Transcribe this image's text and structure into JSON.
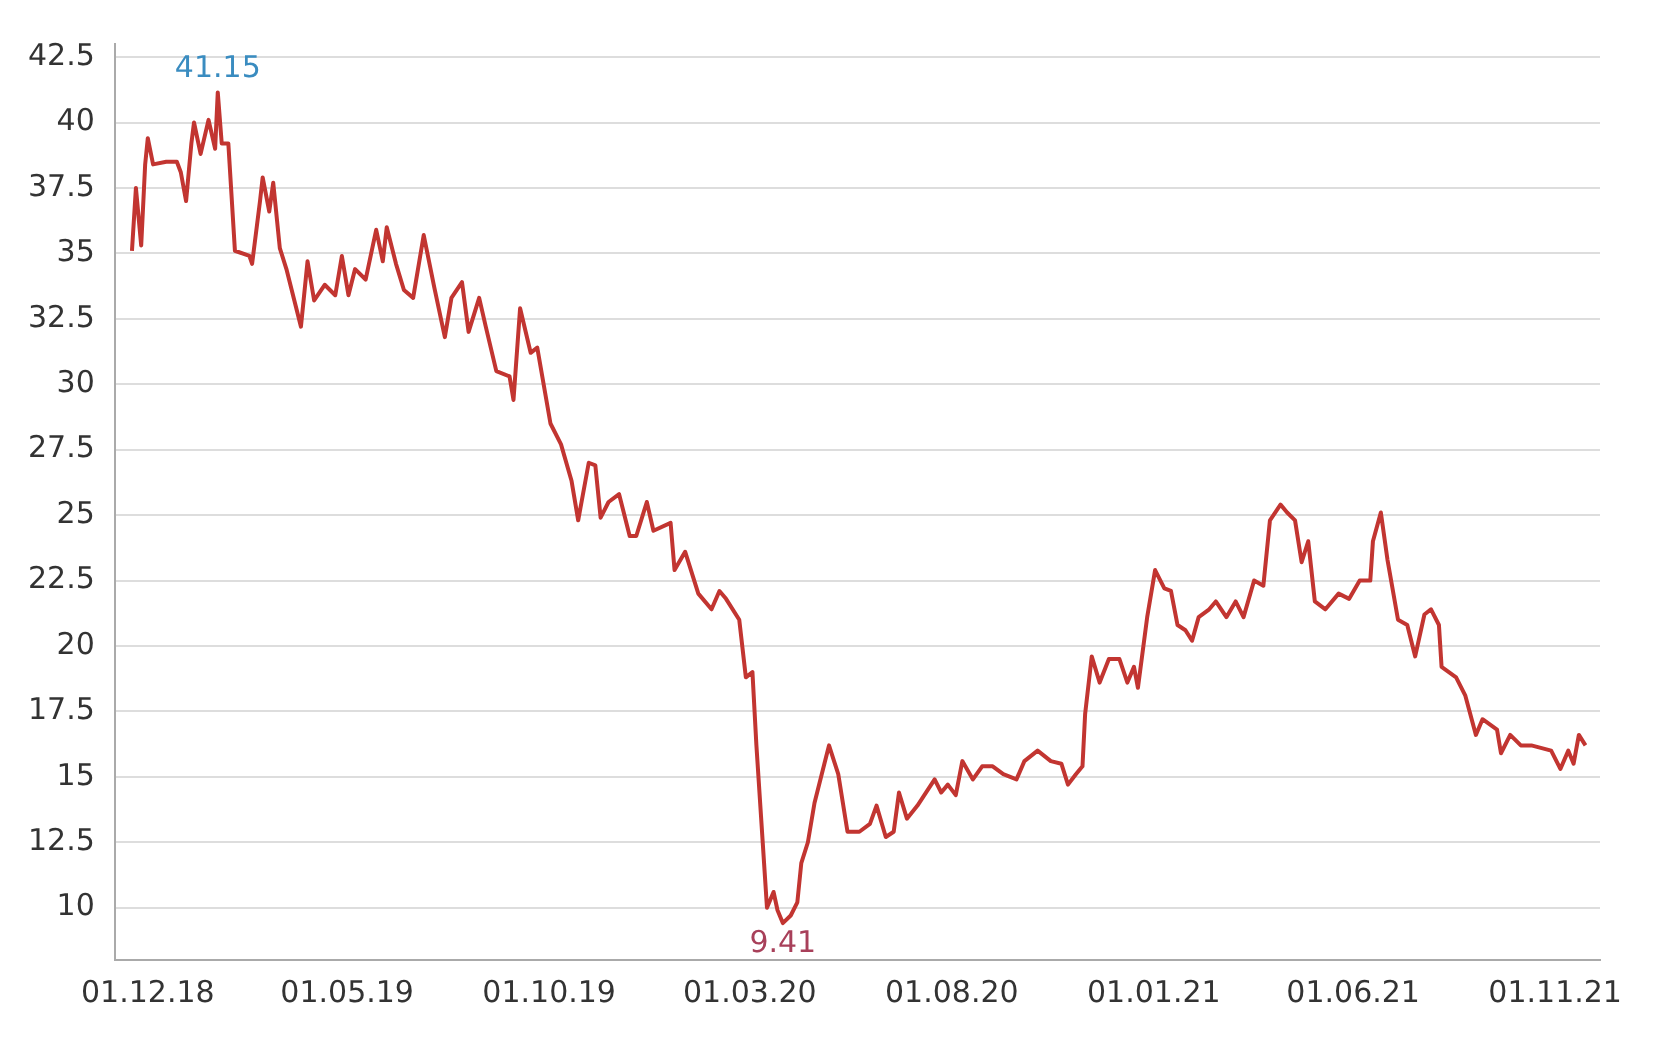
{
  "chart_data": {
    "type": "line",
    "x": [
      "2018-11-19",
      "2018-11-22",
      "2018-11-26",
      "2018-11-29",
      "2018-12-01",
      "2018-12-05",
      "2018-12-15",
      "2018-12-23",
      "2018-12-26",
      "2018-12-30",
      "2019-01-03",
      "2019-01-05",
      "2019-01-10",
      "2019-01-16",
      "2019-01-21",
      "2019-01-23",
      "2019-01-26",
      "2019-01-31",
      "2019-02-05",
      "2019-02-16",
      "2019-02-18",
      "2019-02-24",
      "2019-02-26",
      "2019-03-03",
      "2019-03-06",
      "2019-03-11",
      "2019-03-16",
      "2019-03-22",
      "2019-03-27",
      "2019-04-01",
      "2019-04-06",
      "2019-04-14",
      "2019-04-22",
      "2019-04-27",
      "2019-05-02",
      "2019-05-07",
      "2019-05-15",
      "2019-05-23",
      "2019-05-28",
      "2019-05-31",
      "2019-06-07",
      "2019-06-13",
      "2019-06-20",
      "2019-06-28",
      "2019-07-06",
      "2019-07-14",
      "2019-07-19",
      "2019-07-27",
      "2019-08-01",
      "2019-08-09",
      "2019-08-14",
      "2019-08-22",
      "2019-09-01",
      "2019-09-04",
      "2019-09-09",
      "2019-09-17",
      "2019-09-22",
      "2019-10-02",
      "2019-10-10",
      "2019-10-18",
      "2019-10-23",
      "2019-10-31",
      "2019-11-05",
      "2019-11-09",
      "2019-11-15",
      "2019-11-23",
      "2019-12-01",
      "2019-12-06",
      "2019-12-14",
      "2019-12-19",
      "2020-01-01",
      "2020-01-04",
      "2020-01-12",
      "2020-01-22",
      "2020-02-01",
      "2020-02-07",
      "2020-02-12",
      "2020-02-22",
      "2020-02-27",
      "2020-03-03",
      "2020-03-06",
      "2020-03-14",
      "2020-03-19",
      "2020-03-22",
      "2020-03-26",
      "2020-04-01",
      "2020-04-06",
      "2020-04-09",
      "2020-04-14",
      "2020-04-19",
      "2020-04-30",
      "2020-05-07",
      "2020-05-14",
      "2020-05-23",
      "2020-05-31",
      "2020-06-05",
      "2020-06-12",
      "2020-06-18",
      "2020-06-22",
      "2020-06-28",
      "2020-07-06",
      "2020-07-19",
      "2020-07-24",
      "2020-07-29",
      "2020-08-04",
      "2020-08-09",
      "2020-08-17",
      "2020-08-24",
      "2020-09-01",
      "2020-09-09",
      "2020-09-19",
      "2020-09-25",
      "2020-10-05",
      "2020-10-15",
      "2020-10-23",
      "2020-10-28",
      "2020-11-03",
      "2020-11-08",
      "2020-11-10",
      "2020-11-15",
      "2020-11-21",
      "2020-11-28",
      "2020-12-06",
      "2020-12-12",
      "2020-12-17",
      "2020-12-20",
      "2020-12-27",
      "2021-01-02",
      "2021-01-09",
      "2021-01-14",
      "2021-01-19",
      "2021-01-25",
      "2021-01-30",
      "2021-02-04",
      "2021-02-12",
      "2021-02-17",
      "2021-02-25",
      "2021-03-04",
      "2021-03-10",
      "2021-03-18",
      "2021-03-25",
      "2021-03-30",
      "2021-04-07",
      "2021-04-12",
      "2021-04-18",
      "2021-04-23",
      "2021-04-28",
      "2021-05-03",
      "2021-05-11",
      "2021-05-21",
      "2021-05-29",
      "2021-06-06",
      "2021-06-14",
      "2021-06-16",
      "2021-06-22",
      "2021-06-27",
      "2021-07-05",
      "2021-07-12",
      "2021-07-18",
      "2021-07-25",
      "2021-07-30",
      "2021-08-05",
      "2021-08-07",
      "2021-08-18",
      "2021-08-25",
      "2021-09-02",
      "2021-09-07",
      "2021-09-18",
      "2021-09-21",
      "2021-09-28",
      "2021-10-06",
      "2021-10-14",
      "2021-10-29",
      "2021-11-05",
      "2021-11-11",
      "2021-11-15",
      "2021-11-19",
      "2021-11-24"
    ],
    "series": [
      {
        "color": "#c23531",
        "values": [
          35.1,
          37.5,
          35.3,
          38.4,
          39.4,
          38.4,
          38.5,
          38.5,
          38.1,
          37.0,
          39.2,
          40.0,
          38.8,
          40.1,
          39.0,
          41.15,
          39.2,
          39.2,
          35.1,
          34.9,
          34.6,
          37.0,
          37.9,
          36.6,
          37.7,
          35.2,
          34.4,
          33.2,
          32.2,
          34.7,
          33.2,
          33.8,
          33.4,
          34.9,
          33.4,
          34.4,
          34.0,
          35.9,
          34.7,
          36.0,
          34.6,
          33.6,
          33.3,
          35.7,
          33.7,
          31.8,
          33.3,
          33.9,
          32.0,
          33.3,
          32.2,
          30.5,
          30.3,
          29.4,
          32.9,
          31.2,
          31.4,
          28.5,
          27.7,
          26.3,
          24.8,
          27.0,
          26.9,
          24.9,
          25.5,
          25.8,
          24.2,
          24.2,
          25.5,
          24.4,
          24.7,
          22.9,
          23.6,
          22.0,
          21.4,
          22.1,
          21.8,
          21.0,
          18.8,
          19.0,
          16.2,
          10.0,
          10.6,
          9.9,
          9.41,
          9.7,
          10.2,
          11.7,
          12.5,
          14.0,
          16.2,
          15.1,
          12.9,
          12.9,
          13.2,
          13.9,
          12.7,
          12.9,
          14.4,
          13.4,
          13.9,
          14.9,
          14.4,
          14.7,
          14.3,
          15.6,
          14.9,
          15.4,
          15.4,
          15.1,
          14.9,
          15.6,
          16.0,
          15.6,
          15.5,
          14.7,
          15.1,
          15.4,
          17.4,
          19.6,
          18.6,
          19.5,
          19.5,
          18.6,
          19.2,
          18.4,
          21.1,
          22.9,
          22.2,
          22.1,
          20.8,
          20.6,
          20.2,
          21.1,
          21.4,
          21.7,
          21.1,
          21.7,
          21.1,
          22.5,
          22.3,
          24.8,
          25.4,
          25.1,
          24.8,
          23.2,
          24.0,
          21.7,
          21.4,
          22.0,
          21.8,
          22.5,
          22.5,
          24.0,
          25.1,
          23.3,
          21.0,
          20.8,
          19.6,
          21.2,
          21.4,
          20.8,
          19.2,
          18.8,
          18.1,
          16.6,
          17.2,
          16.8,
          15.9,
          16.6,
          16.2,
          16.2,
          16.0,
          15.3,
          16.0,
          15.5,
          16.6,
          16.2
        ]
      }
    ],
    "xlim": [
      "2018-11-06",
      "2021-12-05"
    ],
    "xticks": [
      {
        "value": "2018-12-01",
        "label": "01.12.18"
      },
      {
        "value": "2019-05-01",
        "label": "01.05.19"
      },
      {
        "value": "2019-10-01",
        "label": "01.10.19"
      },
      {
        "value": "2020-03-01",
        "label": "01.03.20"
      },
      {
        "value": "2020-08-01",
        "label": "01.08.20"
      },
      {
        "value": "2021-01-01",
        "label": "01.01.21"
      },
      {
        "value": "2021-06-01",
        "label": "01.06.21"
      },
      {
        "value": "2021-11-01",
        "label": "01.11.21"
      }
    ],
    "ylim": [
      8,
      43
    ],
    "yticks": [
      10,
      12.5,
      15,
      17.5,
      20,
      22.5,
      25,
      27.5,
      30,
      32.5,
      35,
      37.5,
      40,
      42.5
    ],
    "grid": "y",
    "marker": "none",
    "annotations": [
      {
        "text": "41.15",
        "x": "2019-01-23",
        "y": 41.15
      },
      {
        "text": "9.41",
        "x": "2020-03-26",
        "y": 9.41
      }
    ]
  }
}
